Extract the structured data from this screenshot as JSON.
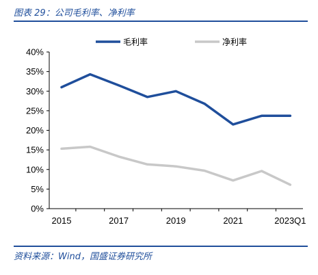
{
  "header": {
    "title": "图表 29：公司毛利率、净利率"
  },
  "footer": {
    "source": "资料来源：Wind，国盛证券研究所"
  },
  "chart_data": {
    "type": "line",
    "x": [
      "2015",
      "2016",
      "2017",
      "2018",
      "2019",
      "2020",
      "2021",
      "2022",
      "2023Q1"
    ],
    "x_tick_labels": [
      "2015",
      "2017",
      "2019",
      "2021",
      "2023Q1"
    ],
    "series": [
      {
        "name": "毛利率",
        "color": "#1f4e9b",
        "values": [
          31.0,
          34.3,
          31.5,
          28.5,
          30.0,
          26.8,
          21.5,
          23.7,
          23.7
        ]
      },
      {
        "name": "净利率",
        "color": "#c8c8c8",
        "values": [
          15.3,
          15.8,
          13.3,
          11.3,
          10.8,
          9.7,
          7.2,
          9.6,
          6.1
        ]
      }
    ],
    "ylim": [
      0,
      40
    ],
    "y_ticks": [
      0,
      5,
      10,
      15,
      20,
      25,
      30,
      35,
      40
    ],
    "y_tick_labels": [
      "0%",
      "5%",
      "10%",
      "15%",
      "20%",
      "25%",
      "30%",
      "35%",
      "40%"
    ],
    "grid": false,
    "legend_position": "top-center"
  }
}
